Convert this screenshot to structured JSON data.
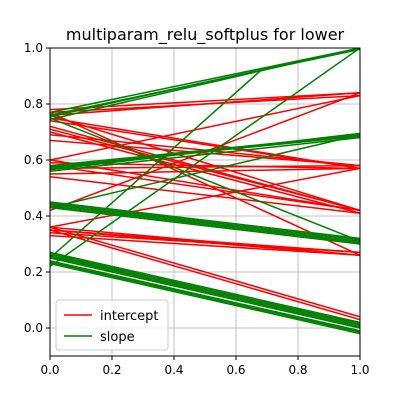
{
  "chart_data": {
    "type": "line",
    "title": "multiparam_relu_softplus for lower",
    "xlabel": "",
    "ylabel": "",
    "xlim": [
      0.0,
      1.0
    ],
    "ylim": [
      -0.1,
      1.0
    ],
    "x_ticks": [
      0.0,
      0.2,
      0.4,
      0.6,
      0.8,
      1.0
    ],
    "x_tick_labels": [
      "0.0",
      "0.2",
      "0.4",
      "0.6",
      "0.8",
      "1.0"
    ],
    "y_ticks": [
      0.0,
      0.2,
      0.4,
      0.6,
      0.8,
      1.0
    ],
    "y_tick_labels": [
      "0.0",
      "0.2",
      "0.4",
      "0.6",
      "0.8",
      "1.0"
    ],
    "grid": true,
    "legend_position": "lower left",
    "series": [
      {
        "name": "intercept",
        "color": "#ff0000",
        "segments": [
          {
            "x": [
              0,
              1
            ],
            "y": [
              0.76,
              0.84
            ]
          },
          {
            "x": [
              0,
              1
            ],
            "y": [
              0.77,
              0.83
            ]
          },
          {
            "x": [
              0,
              1
            ],
            "y": [
              0.78,
              0.84
            ]
          },
          {
            "x": [
              0,
              1
            ],
            "y": [
              0.75,
              0.57
            ]
          },
          {
            "x": [
              0,
              1
            ],
            "y": [
              0.74,
              0.57
            ]
          },
          {
            "x": [
              0,
              1
            ],
            "y": [
              0.72,
              0.42
            ]
          },
          {
            "x": [
              0,
              1
            ],
            "y": [
              0.71,
              0.42
            ]
          },
          {
            "x": [
              0,
              1
            ],
            "y": [
              0.7,
              0.41
            ]
          },
          {
            "x": [
              0,
              1
            ],
            "y": [
              0.69,
              0.58
            ]
          },
          {
            "x": [
              0,
              1
            ],
            "y": [
              0.67,
              0.58
            ]
          },
          {
            "x": [
              0,
              1
            ],
            "y": [
              0.6,
              0.42
            ]
          },
          {
            "x": [
              0,
              1
            ],
            "y": [
              0.59,
              0.57
            ]
          },
          {
            "x": [
              0,
              1
            ],
            "y": [
              0.58,
              0.42
            ]
          },
          {
            "x": [
              0,
              1
            ],
            "y": [
              0.57,
              0.58
            ]
          },
          {
            "x": [
              0,
              1
            ],
            "y": [
              0.55,
              0.57
            ]
          },
          {
            "x": [
              0,
              1
            ],
            "y": [
              0.54,
              0.41
            ]
          },
          {
            "x": [
              0,
              1
            ],
            "y": [
              0.36,
              0.26
            ]
          },
          {
            "x": [
              0,
              1
            ],
            "y": [
              0.35,
              0.26
            ]
          },
          {
            "x": [
              0,
              1
            ],
            "y": [
              0.34,
              0.27
            ]
          },
          {
            "x": [
              0,
              1
            ],
            "y": [
              0.35,
              0.27
            ]
          },
          {
            "x": [
              0,
              1
            ],
            "y": [
              0.33,
              0.26
            ]
          },
          {
            "x": [
              0,
              1
            ],
            "y": [
              0.36,
              0.04
            ]
          },
          {
            "x": [
              0,
              1
            ],
            "y": [
              0.35,
              0.03
            ]
          },
          {
            "x": [
              0,
              1
            ],
            "y": [
              0.76,
              0.42
            ]
          },
          {
            "x": [
              0,
              1
            ],
            "y": [
              0.77,
              0.26
            ]
          },
          {
            "x": [
              0,
              1
            ],
            "y": [
              0.6,
              0.83
            ]
          },
          {
            "x": [
              0,
              1
            ],
            "y": [
              0.36,
              0.57
            ]
          },
          {
            "x": [
              0,
              1
            ],
            "y": [
              0.42,
              0.84
            ]
          }
        ]
      },
      {
        "name": "slope",
        "color": "#008000",
        "segments": [
          {
            "x": [
              0,
              1
            ],
            "y": [
              0.745,
              1.0
            ]
          },
          {
            "x": [
              0,
              1
            ],
            "y": [
              0.755,
              1.0
            ]
          },
          {
            "x": [
              0,
              1
            ],
            "y": [
              0.76,
              0.995
            ]
          },
          {
            "x": [
              0,
              1
            ],
            "y": [
              0.77,
              1.0
            ]
          },
          {
            "x": [
              0,
              1
            ],
            "y": [
              0.56,
              0.68
            ]
          },
          {
            "x": [
              0,
              1
            ],
            "y": [
              0.57,
              0.69
            ]
          },
          {
            "x": [
              0,
              1
            ],
            "y": [
              0.58,
              0.69
            ]
          },
          {
            "x": [
              0,
              1
            ],
            "y": [
              0.565,
              0.695
            ]
          },
          {
            "x": [
              0,
              1
            ],
            "y": [
              0.575,
              0.685
            ]
          },
          {
            "x": [
              0,
              1
            ],
            "y": [
              0.43,
              0.3
            ]
          },
          {
            "x": [
              0,
              1
            ],
            "y": [
              0.44,
              0.31
            ]
          },
          {
            "x": [
              0,
              1
            ],
            "y": [
              0.45,
              0.32
            ]
          },
          {
            "x": [
              0,
              1
            ],
            "y": [
              0.435,
              0.305
            ]
          },
          {
            "x": [
              0,
              1
            ],
            "y": [
              0.445,
              0.315
            ]
          },
          {
            "x": [
              0,
              1
            ],
            "y": [
              0.23,
              -0.02
            ]
          },
          {
            "x": [
              0,
              1
            ],
            "y": [
              0.24,
              -0.01
            ]
          },
          {
            "x": [
              0,
              1
            ],
            "y": [
              0.25,
              0.0
            ]
          },
          {
            "x": [
              0,
              1
            ],
            "y": [
              0.26,
              0.01
            ]
          },
          {
            "x": [
              0,
              1
            ],
            "y": [
              0.27,
              0.02
            ]
          },
          {
            "x": [
              0,
              1
            ],
            "y": [
              0.235,
              -0.015
            ]
          },
          {
            "x": [
              0,
              1
            ],
            "y": [
              0.255,
              0.005
            ]
          },
          {
            "x": [
              0,
              1
            ],
            "y": [
              0.265,
              0.015
            ]
          },
          {
            "x": [
              0,
              1
            ],
            "y": [
              0.22,
              1.0
            ]
          },
          {
            "x": [
              0,
              1
            ],
            "y": [
              0.43,
              0.69
            ]
          },
          {
            "x": [
              0,
              1
            ],
            "y": [
              0.75,
              0.31
            ]
          },
          {
            "x": [
              0,
              0.68
            ],
            "y": [
              0.25,
              0.92
            ]
          }
        ]
      }
    ]
  }
}
